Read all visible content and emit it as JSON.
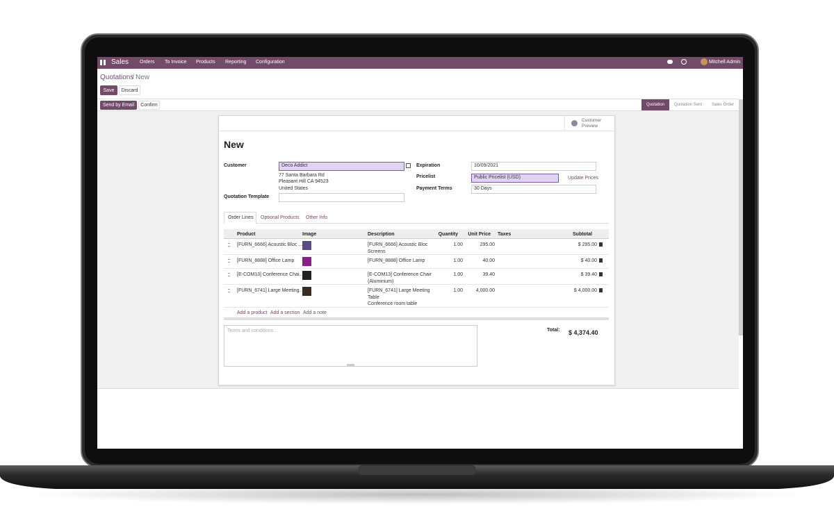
{
  "navbar": {
    "app_name": "Sales",
    "menu": [
      "Orders",
      "To Invoice",
      "Products",
      "Reporting",
      "Configuration"
    ],
    "user": "Mitchell Admin"
  },
  "breadcrumb": {
    "parent": "Quotations",
    "separator": "/",
    "current": "New"
  },
  "actions": {
    "save": "Save",
    "discard": "Discard",
    "send_by_email": "Send by Email",
    "confirm": "Confirm"
  },
  "status_bar": [
    "Quotation",
    "Quotation Sent",
    "Sales Order"
  ],
  "customer_preview": "Customer Preview",
  "form": {
    "title": "New",
    "customer": {
      "label": "Customer",
      "value": "Deco Addict",
      "address": [
        "77 Santa Barbara Rd",
        "Pleasant Hill CA 94523",
        "United States"
      ]
    },
    "quotation_template": {
      "label": "Quotation Template"
    },
    "expiration": {
      "label": "Expiration",
      "value": "10/09/2021"
    },
    "pricelist": {
      "label": "Pricelist",
      "value": "Public Pricelist (USD)",
      "action": "Update Prices"
    },
    "payment_terms": {
      "label": "Payment Terms",
      "value": "30 Days"
    }
  },
  "tabs": [
    "Order Lines",
    "Optional Products",
    "Other Info"
  ],
  "table": {
    "columns": [
      "Product",
      "Image",
      "Description",
      "Quantity",
      "Unit Price",
      "Taxes",
      "Subtotal"
    ],
    "rows": [
      {
        "product": "[FURN_6666] Acoustic Bloc ...",
        "description": [
          "[FURN_6666] Acoustic Bloc",
          "Screens"
        ],
        "quantity": "1.00",
        "unit_price": "295.00",
        "subtotal": "$ 295.00"
      },
      {
        "product": "[FURN_8888] Office Lamp",
        "description": [
          "[FURN_8888] Office Lamp"
        ],
        "quantity": "1.00",
        "unit_price": "40.00",
        "subtotal": "$ 40.00"
      },
      {
        "product": "[E-COM13] Conference Chai...",
        "description": [
          "[E-COM13] Conference Chair",
          "(Aluminium)"
        ],
        "quantity": "1.00",
        "unit_price": "39.40",
        "subtotal": "$ 39.40"
      },
      {
        "product": "[FURN_6741] Large Meeting...",
        "description": [
          "[FURN_6741] Large Meeting",
          "Table",
          "Conference room table"
        ],
        "quantity": "1.00",
        "unit_price": "4,000.00",
        "subtotal": "$ 4,000.00"
      }
    ],
    "add_links": [
      "Add a product",
      "Add a section",
      "Add a note"
    ]
  },
  "terms_placeholder": "Terms and conditions...",
  "total": {
    "label": "Total:",
    "value": "$ 4,374.40"
  }
}
